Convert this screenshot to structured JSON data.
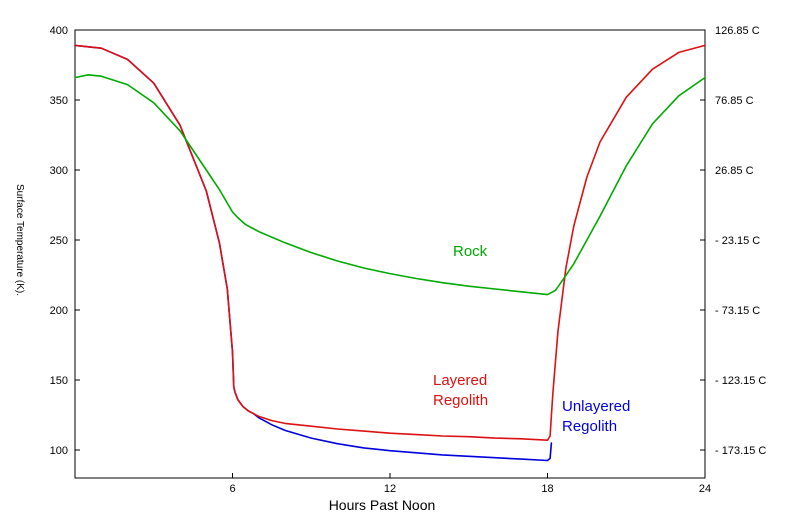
{
  "chart_data": {
    "type": "line",
    "title": "",
    "xlabel": "Hours Past Noon",
    "ylabel": "Surface Temperature (K).",
    "xlim": [
      0,
      24
    ],
    "ylim": [
      80,
      400
    ],
    "x_ticks": [
      6,
      12,
      18,
      24
    ],
    "y_ticks": [
      100,
      150,
      200,
      250,
      300,
      350,
      400
    ],
    "y2_ticks": [
      {
        "value": 400,
        "label": "126.85 C"
      },
      {
        "value": 350,
        "label": "76.85 C"
      },
      {
        "value": 300,
        "label": "26.85 C"
      },
      {
        "value": 250,
        "label": "- 23.15 C"
      },
      {
        "value": 200,
        "label": "- 73.15 C"
      },
      {
        "value": 150,
        "label": "- 123.15 C"
      },
      {
        "value": 100,
        "label": "- 173.15 C"
      }
    ],
    "grid": false,
    "legend": "none",
    "series": [
      {
        "name": "Unlayered Regolith",
        "color": "#0000dd",
        "x": [
          0,
          1,
          2,
          3,
          4,
          5,
          5.5,
          5.8,
          6.0,
          6.05,
          6.1,
          6.2,
          6.4,
          6.6,
          6.8,
          7,
          7.2,
          7.5,
          8,
          9,
          10,
          11,
          12,
          13,
          14,
          15,
          16,
          17,
          18.0,
          18.1,
          18.15
        ],
        "y": [
          389,
          387,
          379,
          362,
          332,
          285,
          248,
          215,
          170,
          145,
          141,
          136,
          131,
          128,
          126,
          123,
          121,
          118,
          114,
          108.5,
          104.5,
          101.5,
          99.5,
          98,
          96.5,
          95.5,
          94.5,
          93.5,
          92.5,
          94,
          105
        ]
      },
      {
        "name": "Layered Regolith",
        "color": "#dd1111",
        "x": [
          0,
          1,
          2,
          3,
          4,
          5,
          5.5,
          5.8,
          6.0,
          6.05,
          6.1,
          6.2,
          6.4,
          6.6,
          6.8,
          7,
          7.5,
          8,
          9,
          10,
          11,
          12,
          13,
          14,
          15,
          16,
          17,
          18.0,
          18.1,
          18.2,
          18.4,
          18.7,
          19,
          19.5,
          20,
          21,
          22,
          23,
          24
        ],
        "y": [
          389,
          387,
          379,
          362,
          332,
          285,
          248,
          215,
          170,
          145,
          141,
          136,
          131,
          128,
          126,
          124,
          121,
          119,
          117,
          115,
          113.5,
          112,
          111,
          110,
          109.5,
          108.5,
          108,
          107,
          110,
          140,
          185,
          230,
          260,
          295,
          320,
          352,
          372,
          384,
          389
        ]
      },
      {
        "name": "Rock",
        "color": "#00aa00",
        "x": [
          0,
          0.5,
          1,
          2,
          3,
          4,
          5,
          5.5,
          6.0,
          6.2,
          6.5,
          7,
          8,
          9,
          10,
          11,
          12,
          13,
          14,
          15,
          16,
          17,
          18,
          18.3,
          18.6,
          19,
          20,
          21,
          22,
          23,
          24
        ],
        "y": [
          366,
          368,
          367,
          361,
          348,
          328,
          300,
          286,
          270,
          266,
          261,
          256,
          248,
          241,
          235,
          230,
          226,
          222.5,
          219.5,
          217,
          215,
          213,
          211,
          214,
          222,
          233,
          267,
          303,
          333,
          353,
          366
        ]
      }
    ],
    "annotations": [
      {
        "text": "Rock",
        "color": "#00aa00"
      },
      {
        "text": "Layered",
        "color": "#dd1111"
      },
      {
        "text": "Regolith",
        "color": "#dd1111"
      },
      {
        "text": "Unlayered",
        "color": "#0000dd"
      },
      {
        "text": "Regolith",
        "color": "#0000dd"
      }
    ]
  }
}
